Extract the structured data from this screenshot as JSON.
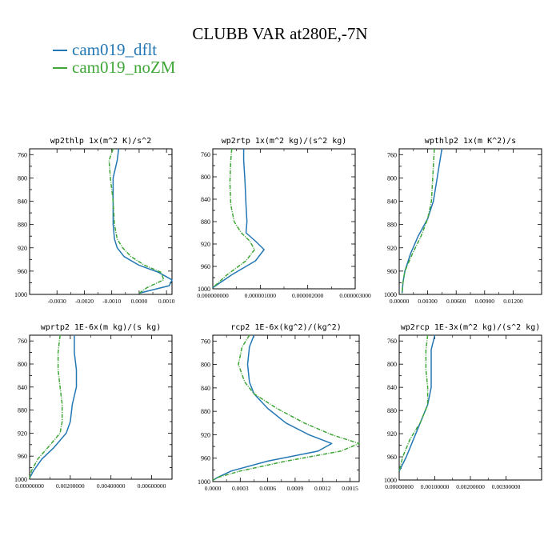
{
  "title": "CLUBB VAR at280E,-7N",
  "legend": [
    {
      "label": "cam019_dflt",
      "color": "#2377b4"
    },
    {
      "label": "cam019_noZM",
      "color": "#3fa637"
    }
  ],
  "chart_data": [
    {
      "type": "line",
      "title": "wp2thlp  1x(m^2 K)/s^2",
      "xlim": [
        -0.004,
        0.0012
      ],
      "ylim": [
        1000,
        750
      ],
      "xticks": [
        -0.003,
        -0.002,
        -0.001,
        0.0,
        0.001
      ],
      "xtick_labels": [
        "-0.0030",
        "-0.0020",
        "-0.0010",
        "0.0000",
        "0.0010"
      ],
      "yticks": [
        760,
        800,
        840,
        880,
        920,
        960,
        1000
      ],
      "series": [
        {
          "name": "cam019_dflt",
          "x": [
            -0.00075,
            -0.0008,
            -0.00095,
            -0.00095,
            -0.00095,
            -0.0009,
            -0.0008,
            -0.00055,
            0.0,
            0.0007,
            0.0012,
            0.0011,
            0.0
          ],
          "y": [
            750,
            770,
            800,
            840,
            880,
            905,
            920,
            935,
            950,
            962,
            975,
            985,
            998
          ]
        },
        {
          "name": "cam019_noZM",
          "x": [
            -0.00095,
            -0.0011,
            -0.00105,
            -0.00095,
            -0.0009,
            -0.0008,
            -0.0006,
            -0.0003,
            0.0002,
            0.0008,
            0.0009,
            0.0003,
            0.0
          ],
          "y": [
            750,
            770,
            800,
            840,
            880,
            905,
            920,
            935,
            950,
            962,
            975,
            988,
            998
          ]
        }
      ]
    },
    {
      "type": "line",
      "title": "wp2rtp  1x(m^2 kg)/(s^2 kg)",
      "xlim": [
        0.0,
        3e-06
      ],
      "ylim": [
        1000,
        750
      ],
      "xticks": [
        0.0,
        1e-06,
        2e-06,
        3e-06
      ],
      "xtick_labels": [
        "0.000000000",
        "0.000001000",
        "0.000002000",
        "0.000003000"
      ],
      "yticks": [
        760,
        800,
        840,
        880,
        920,
        960,
        1000
      ],
      "series": [
        {
          "name": "cam019_dflt",
          "x": [
            6.5e-07,
            6.5e-07,
            6.8e-07,
            7e-07,
            7.2e-07,
            7e-07,
            9e-07,
            1.08e-06,
            9e-07,
            4e-07,
            0.0
          ],
          "y": [
            750,
            770,
            810,
            850,
            880,
            900,
            915,
            930,
            950,
            975,
            998
          ]
        },
        {
          "name": "cam019_noZM",
          "x": [
            4e-07,
            3.8e-07,
            3.6e-07,
            3.8e-07,
            4.5e-07,
            6e-07,
            7.8e-07,
            8.8e-07,
            7e-07,
            3e-07,
            0.0
          ],
          "y": [
            750,
            770,
            810,
            850,
            880,
            900,
            915,
            930,
            950,
            975,
            998
          ]
        }
      ]
    },
    {
      "type": "line",
      "title": "wpthlp2  1x(m K^2)/s",
      "xlim": [
        0.0,
        0.015
      ],
      "ylim": [
        1000,
        750
      ],
      "xticks": [
        0.0,
        0.003,
        0.006,
        0.009,
        0.012
      ],
      "xtick_labels": [
        "0.00000",
        "0.00300",
        "0.00600",
        "0.00900",
        "0.01200"
      ],
      "yticks": [
        760,
        800,
        840,
        880,
        920,
        960,
        1000
      ],
      "series": [
        {
          "name": "cam019_dflt",
          "x": [
            0.0045,
            0.0042,
            0.0039,
            0.0036,
            0.003,
            0.002,
            0.0012,
            0.0006,
            0.0004,
            0.0003
          ],
          "y": [
            750,
            780,
            810,
            840,
            870,
            900,
            930,
            960,
            980,
            998
          ]
        },
        {
          "name": "cam019_noZM",
          "x": [
            0.0037,
            0.0036,
            0.0035,
            0.0034,
            0.003,
            0.0023,
            0.0014,
            0.0006,
            0.0004,
            0.0003
          ],
          "y": [
            750,
            780,
            810,
            840,
            870,
            900,
            930,
            960,
            980,
            998
          ]
        }
      ]
    },
    {
      "type": "line",
      "title": "wprtp2  1E-6x(m kg)/(s kg)",
      "xlim": [
        0.0,
        0.007
      ],
      "ylim": [
        1000,
        750
      ],
      "xticks": [
        0.0,
        0.002,
        0.004,
        0.006
      ],
      "xtick_labels": [
        "0.00000000",
        "0.00200000",
        "0.00400000",
        "0.00600000"
      ],
      "yticks": [
        760,
        800,
        840,
        880,
        920,
        960,
        1000
      ],
      "series": [
        {
          "name": "cam019_dflt",
          "x": [
            0.0022,
            0.0022,
            0.0023,
            0.0023,
            0.0021,
            0.002,
            0.0018,
            0.0012,
            0.0006,
            0.0002,
            0.0
          ],
          "y": [
            750,
            780,
            810,
            840,
            870,
            900,
            920,
            945,
            965,
            985,
            998
          ]
        },
        {
          "name": "cam019_noZM",
          "x": [
            0.0015,
            0.0014,
            0.0014,
            0.0015,
            0.0016,
            0.0016,
            0.0015,
            0.0009,
            0.0004,
            0.0001,
            0.0
          ],
          "y": [
            750,
            780,
            810,
            840,
            870,
            900,
            920,
            945,
            965,
            985,
            998
          ]
        }
      ]
    },
    {
      "type": "line",
      "title": "rcp2  1E-6x(kg^2)/(kg^2)",
      "xlim": [
        0.0,
        0.0016
      ],
      "ylim": [
        1000,
        750
      ],
      "xticks": [
        0.0,
        0.0003,
        0.0006,
        0.0009,
        0.0012,
        0.0015
      ],
      "xtick_labels": [
        "0.0000",
        "0.0003",
        "0.0006",
        "0.0009",
        "0.0012",
        "0.0015"
      ],
      "yticks": [
        760,
        800,
        840,
        880,
        920,
        960,
        1000
      ],
      "series": [
        {
          "name": "cam019_dflt",
          "x": [
            0.00045,
            0.0004,
            0.00038,
            0.0004,
            0.00045,
            0.0006,
            0.0008,
            0.00105,
            0.0013,
            0.00115,
            0.0006,
            0.0002,
            5e-05,
            0.0
          ],
          "y": [
            750,
            770,
            800,
            830,
            850,
            875,
            900,
            920,
            935,
            948,
            965,
            982,
            993,
            998
          ]
        },
        {
          "name": "cam019_noZM",
          "x": [
            0.0004,
            0.00032,
            0.00028,
            0.00035,
            0.00045,
            0.0007,
            0.001,
            0.0013,
            0.0016,
            0.0014,
            0.0008,
            0.0003,
            5e-05,
            0.0
          ],
          "y": [
            750,
            770,
            800,
            830,
            850,
            875,
            900,
            920,
            935,
            948,
            965,
            982,
            993,
            998
          ]
        }
      ]
    },
    {
      "type": "line",
      "title": "wp2rcp  1E-3x(m^2 kg)/(s^2 kg)",
      "xlim": [
        0.0,
        0.004
      ],
      "ylim": [
        1000,
        750
      ],
      "xticks": [
        0.0,
        0.001,
        0.002,
        0.003
      ],
      "xtick_labels": [
        "0.00000000",
        "0.00100000",
        "0.00200000",
        "0.00300000"
      ],
      "yticks": [
        760,
        800,
        840,
        880,
        920,
        960,
        1000
      ],
      "series": [
        {
          "name": "cam019_dflt",
          "x": [
            0.001,
            0.0009,
            0.0009,
            0.0009,
            0.0008,
            0.0006,
            0.0004,
            0.0002,
            0.0
          ],
          "y": [
            750,
            775,
            810,
            840,
            870,
            900,
            930,
            960,
            985
          ]
        },
        {
          "name": "cam019_noZM",
          "x": [
            0.0008,
            0.00075,
            0.00075,
            0.0008,
            0.0008,
            0.0006,
            0.0003,
            0.0001,
            0.0
          ],
          "y": [
            750,
            775,
            810,
            840,
            870,
            900,
            930,
            960,
            985
          ]
        }
      ]
    }
  ]
}
